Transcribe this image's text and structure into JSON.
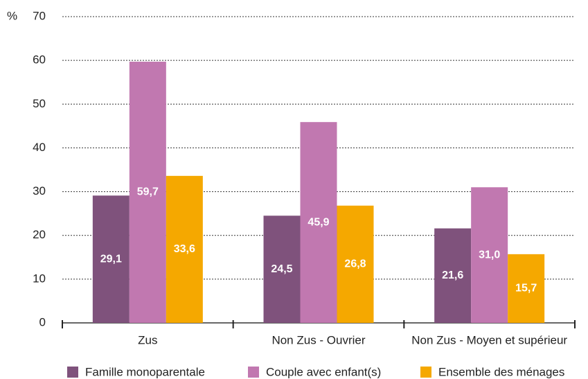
{
  "chart_data": {
    "type": "bar",
    "y_label": "%",
    "categories": [
      "Zus",
      "Non Zus - Ouvrier",
      "Non Zus - Moyen et supérieur"
    ],
    "series": [
      {
        "name": "Famille monoparentale",
        "color": "#7f527c",
        "values": [
          29.1,
          24.5,
          21.6
        ],
        "value_labels": [
          "29,1",
          "24,5",
          "21,6"
        ]
      },
      {
        "name": "Couple avec enfant(s)",
        "color": "#c178b0",
        "values": [
          59.7,
          45.9,
          31.0
        ],
        "value_labels": [
          "59,7",
          "45,9",
          "31,0"
        ]
      },
      {
        "name": "Ensemble des ménages",
        "color": "#f5a800",
        "values": [
          33.6,
          26.8,
          15.7
        ],
        "value_labels": [
          "33,6",
          "26,8",
          "15,7"
        ]
      }
    ],
    "ylim": [
      0,
      70
    ],
    "yticks": [
      0,
      10,
      20,
      30,
      40,
      50,
      60,
      70
    ],
    "grid": true,
    "legend": "bottom"
  }
}
